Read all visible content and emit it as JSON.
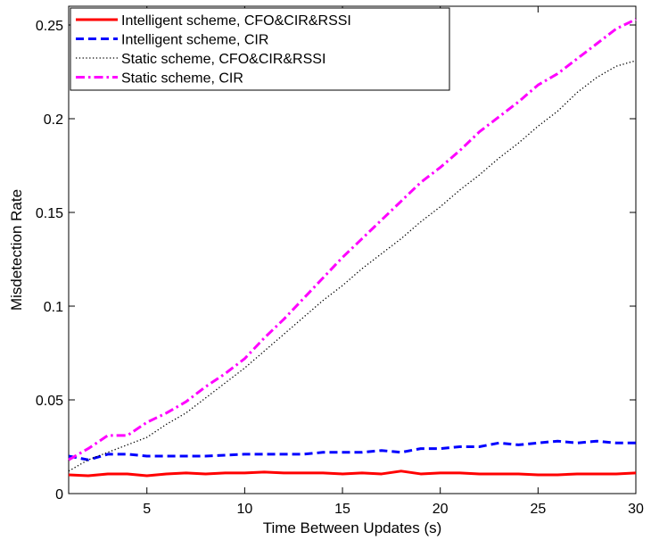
{
  "chart_data": {
    "type": "line",
    "xlabel": "Time Between Updates (s)",
    "ylabel": "Misdetection Rate",
    "xlim": [
      1,
      30
    ],
    "ylim": [
      0,
      0.26
    ],
    "xticks": [
      5,
      10,
      15,
      20,
      25,
      30
    ],
    "yticks": [
      0,
      0.05,
      0.1,
      0.15,
      0.2,
      0.25
    ],
    "xtick_labels": [
      "5",
      "10",
      "15",
      "20",
      "25",
      "30"
    ],
    "ytick_labels": [
      "0",
      "0.05",
      "0.1",
      "0.15",
      "0.2",
      "0.25"
    ],
    "grid": false,
    "legend_position": "top-left",
    "x": [
      1,
      2,
      3,
      4,
      5,
      6,
      7,
      8,
      9,
      10,
      11,
      12,
      13,
      14,
      15,
      16,
      17,
      18,
      19,
      20,
      21,
      22,
      23,
      24,
      25,
      26,
      27,
      28,
      29,
      30
    ],
    "series": [
      {
        "name": "Intelligent scheme, CFO&CIR&RSSI",
        "color": "#ff0000",
        "style": "solid",
        "values": [
          0.01,
          0.0095,
          0.0105,
          0.0105,
          0.0095,
          0.0105,
          0.011,
          0.0105,
          0.011,
          0.011,
          0.0115,
          0.011,
          0.011,
          0.011,
          0.0105,
          0.011,
          0.0105,
          0.012,
          0.0105,
          0.011,
          0.011,
          0.0105,
          0.0105,
          0.0105,
          0.01,
          0.01,
          0.0105,
          0.0105,
          0.0105,
          0.011
        ]
      },
      {
        "name": "Intelligent scheme, CIR",
        "color": "#0000ff",
        "style": "dashed",
        "values": [
          0.02,
          0.018,
          0.021,
          0.021,
          0.02,
          0.02,
          0.02,
          0.02,
          0.0205,
          0.021,
          0.021,
          0.021,
          0.021,
          0.022,
          0.022,
          0.022,
          0.023,
          0.022,
          0.024,
          0.024,
          0.025,
          0.025,
          0.027,
          0.026,
          0.027,
          0.028,
          0.027,
          0.028,
          0.027,
          0.027
        ]
      },
      {
        "name": "Static scheme, CFO&CIR&RSSI",
        "color": "#000000",
        "style": "dotted",
        "values": [
          0.012,
          0.018,
          0.022,
          0.026,
          0.03,
          0.037,
          0.043,
          0.051,
          0.059,
          0.067,
          0.076,
          0.085,
          0.094,
          0.103,
          0.111,
          0.12,
          0.128,
          0.136,
          0.145,
          0.153,
          0.162,
          0.17,
          0.179,
          0.187,
          0.196,
          0.204,
          0.214,
          0.222,
          0.228,
          0.231
        ]
      },
      {
        "name": "Static scheme, CIR",
        "color": "#ff00ff",
        "style": "dashdot",
        "values": [
          0.018,
          0.024,
          0.031,
          0.031,
          0.038,
          0.043,
          0.049,
          0.057,
          0.064,
          0.072,
          0.083,
          0.093,
          0.104,
          0.115,
          0.126,
          0.136,
          0.146,
          0.156,
          0.166,
          0.174,
          0.183,
          0.193,
          0.201,
          0.209,
          0.218,
          0.224,
          0.232,
          0.24,
          0.248,
          0.253
        ]
      }
    ]
  }
}
